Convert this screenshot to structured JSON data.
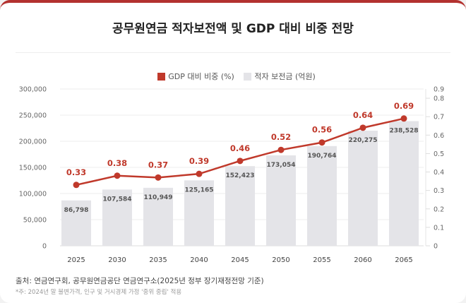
{
  "title": "공무원연금 적자보전액 및 GDP 대비 비중 전망",
  "legend": [
    {
      "label": "GDP 대비 비중 (%)",
      "color": "#c0392b"
    },
    {
      "label": "적자 보전금 (억원)",
      "color": "#e4e4e8"
    }
  ],
  "source": "출처: 연금연구회, 공무원연금공단 연금연구소(2025년 정부 장기재정전망 기준)",
  "note": "*주: 2024년 말 불변가격, 인구 및 거시경제 가정 '중위 중립' 적용",
  "chart_data": {
    "type": "bar+line",
    "title": "공무원연금 적자보전액 및 GDP 대비 비중 전망",
    "categories": [
      "2025",
      "2030",
      "2035",
      "2040",
      "2045",
      "2050",
      "2055",
      "2060",
      "2065"
    ],
    "series": [
      {
        "name": "적자 보전금 (억원)",
        "type": "bar",
        "axis": "left",
        "color": "#e4e4e8",
        "values": [
          86798,
          107584,
          110949,
          125165,
          152423,
          173054,
          190764,
          220275,
          238528
        ],
        "labels": [
          "86,798",
          "107,584",
          "110,949",
          "125,165",
          "152,423",
          "173,054",
          "190,764",
          "220,275",
          "238,528"
        ]
      },
      {
        "name": "GDP 대비 비중 (%)",
        "type": "line",
        "axis": "right",
        "color": "#c0392b",
        "values": [
          0.33,
          0.38,
          0.37,
          0.39,
          0.46,
          0.52,
          0.56,
          0.64,
          0.69
        ],
        "labels": [
          "0.33",
          "0.38",
          "0.37",
          "0.39",
          "0.46",
          "0.52",
          "0.56",
          "0.64",
          "0.69"
        ]
      }
    ],
    "ylim": [
      0,
      300000
    ],
    "yticks": [
      "0",
      "50,000",
      "100,000",
      "150,000",
      "200,000",
      "250,000",
      "300,000"
    ],
    "y2lim": [
      0,
      0.85
    ],
    "y2ticks": [
      "0",
      "0.1",
      "0.2",
      "0.3",
      "0.4",
      "0.5",
      "0.6",
      "0.7",
      "0.8"
    ],
    "y2top_label": "0.9",
    "grid": true,
    "legend_position": "top"
  }
}
